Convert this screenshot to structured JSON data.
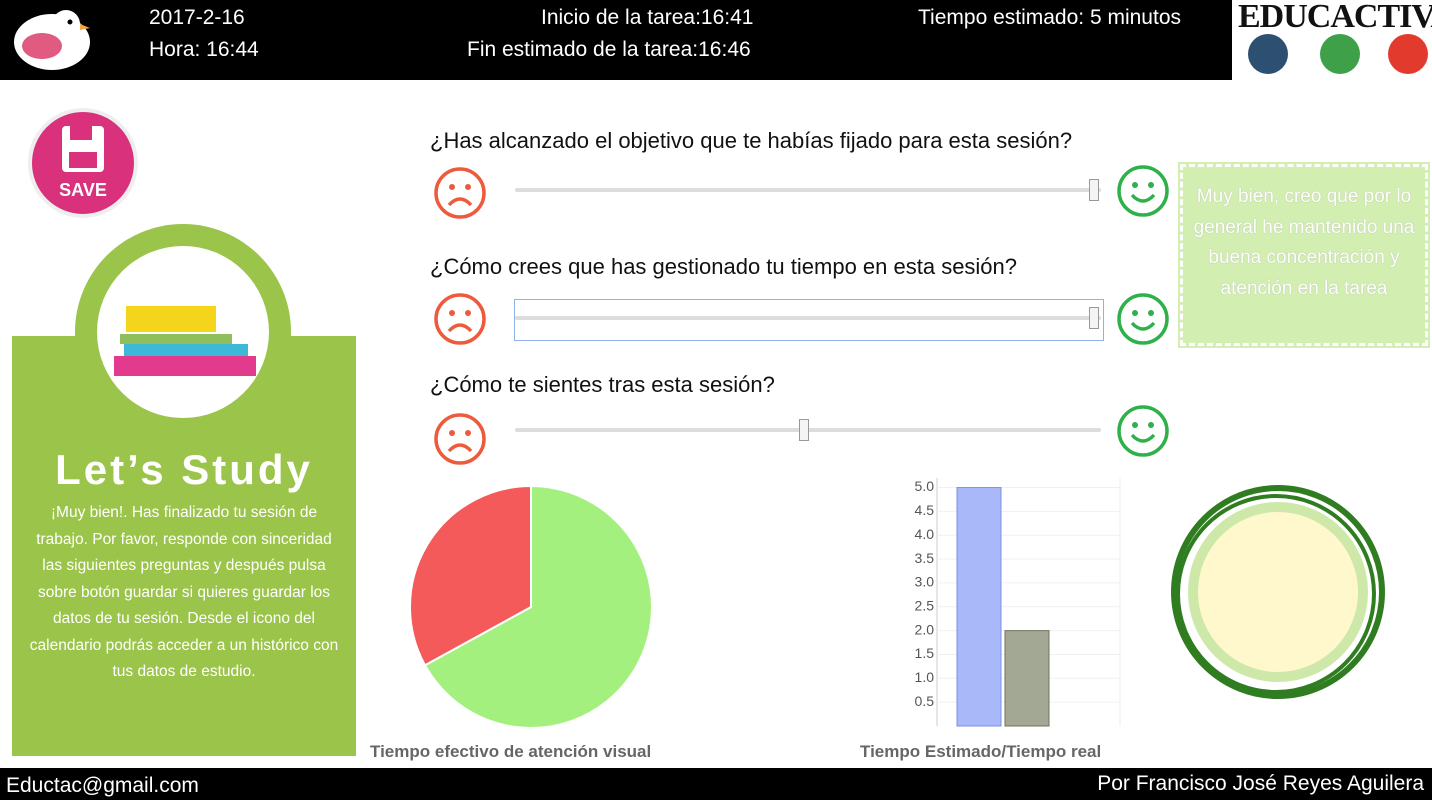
{
  "header": {
    "date": "2017-2-16",
    "time": "Hora: 16:44",
    "task_start": "Inicio de la tarea:16:41",
    "task_end": "Fin estimado de la tarea:16:46",
    "estimated": "Tiempo estimado: 5 minutos",
    "brand": "EDUCACTIVA"
  },
  "save_button": "SAVE",
  "sidebar": {
    "title": "Let’s Study",
    "text": "¡Muy bien!. Has finalizado tu sesión de trabajo. Por favor, responde con sinceridad las siguientes preguntas y después pulsa sobre botón guardar si quieres guardar los datos de tu sesión. Desde el icono del calendario podrás acceder a un histórico con tus datos de estudio."
  },
  "slider_range": [
    0,
    100
  ],
  "questions": [
    {
      "text": "¿Has alcanzado el objetivo que te habías fijado para esta sesión?",
      "value": 100
    },
    {
      "text": "¿Cómo crees que has gestionado tu tiempo en esta sesión?",
      "value": 100
    },
    {
      "text": "¿Cómo te sientes tras esta sesión?",
      "value": 50
    }
  ],
  "feedback": "Muy bien, creo que por lo general he mantenido una buena concentración y atención en la tarea",
  "chart_data": [
    {
      "type": "pie",
      "title": "Tiempo efectivo de atención visual",
      "values": [
        67,
        33
      ],
      "colors": [
        "#a3f07f",
        "#f45a5a"
      ]
    },
    {
      "type": "bar",
      "title": "Tiempo Estimado/Tiempo real",
      "categories": [
        null,
        null
      ],
      "values": [
        5,
        2
      ],
      "colors": [
        "#a8b8f8",
        "#a3a894"
      ],
      "ylim": [
        0,
        5.2
      ],
      "grid": true,
      "yticks": [
        {
          "value": 0.5,
          "label": "0.5"
        },
        {
          "value": 1,
          "label": "1.0"
        },
        {
          "value": 1.5,
          "label": "1.5"
        },
        {
          "value": 2,
          "label": "2.0"
        },
        {
          "value": 2.5,
          "label": "2.5"
        },
        {
          "value": 3,
          "label": "3.0"
        },
        {
          "value": 3.5,
          "label": "3.5"
        },
        {
          "value": 4,
          "label": "4.0"
        },
        {
          "value": 4.5,
          "label": "4.5"
        },
        {
          "value": 5,
          "label": "5.0"
        }
      ]
    }
  ],
  "footer": {
    "email": "Eductac@gmail.com",
    "author": "Por Francisco José Reyes Aguilera"
  }
}
